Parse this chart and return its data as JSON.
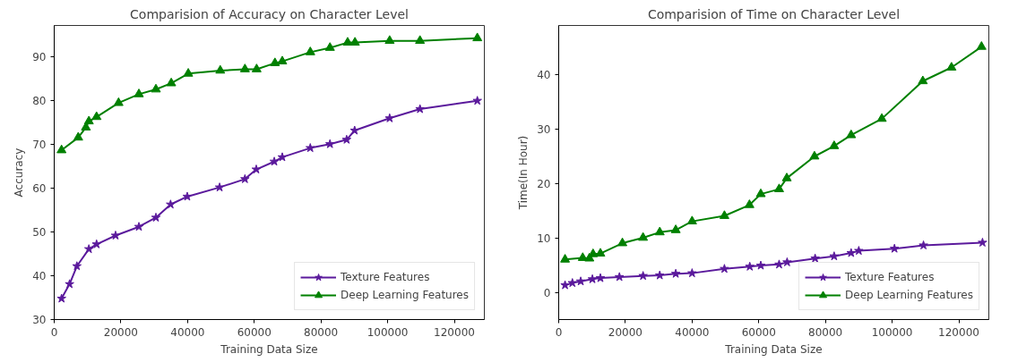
{
  "chart_data": [
    {
      "type": "line",
      "title": "Comparision of Accuracy on Character Level",
      "xlabel": "Training Data Size",
      "ylabel": "Accuracy",
      "xlim": [
        0,
        129000
      ],
      "ylim": [
        30,
        97.2
      ],
      "xticks": [
        0,
        20000,
        40000,
        60000,
        80000,
        100000,
        120000
      ],
      "yticks": [
        30,
        40,
        50,
        60,
        70,
        80,
        90
      ],
      "legend": "bottom right",
      "line_style": "solid",
      "series": [
        {
          "name": "Texture Features",
          "color": "#5b1a9c",
          "marker": "star",
          "x": [
            2200,
            4600,
            6800,
            10400,
            12700,
            18400,
            25400,
            30500,
            34900,
            39900,
            49600,
            57200,
            60600,
            66000,
            68400,
            76800,
            82700,
            87700,
            90100,
            100600,
            109700,
            126900
          ],
          "values": [
            34.8,
            38.1,
            42.2,
            46.1,
            47.2,
            49.2,
            51.2,
            53.3,
            56.3,
            58.1,
            60.2,
            62.1,
            64.3,
            66.1,
            67.1,
            69.2,
            70.1,
            71.1,
            73.2,
            76,
            78.1,
            80
          ]
        },
        {
          "name": "Deep Learning Features",
          "color": "#008000",
          "marker": "triangle",
          "x": [
            2200,
            7200,
            9500,
            10400,
            12700,
            19300,
            25400,
            30500,
            35100,
            40200,
            49800,
            57200,
            60700,
            66200,
            68400,
            76800,
            82700,
            88000,
            90200,
            100600,
            109700,
            126900
          ],
          "values": [
            68.7,
            71.6,
            73.9,
            75.3,
            76.3,
            79.5,
            81.5,
            82.6,
            84,
            86.2,
            86.9,
            87.2,
            87.2,
            88.6,
            89,
            91.1,
            92.1,
            93.3,
            93.3,
            93.7,
            93.7,
            94.3
          ]
        }
      ]
    },
    {
      "type": "line",
      "title": "Comparision of Time on Character Level",
      "xlabel": "Training Data Size",
      "ylabel": "Time(In Hour)",
      "xlim": [
        0,
        129000
      ],
      "ylim": [
        -4.9,
        49
      ],
      "xticks": [
        0,
        20000,
        40000,
        60000,
        80000,
        100000,
        120000
      ],
      "yticks": [
        0,
        10,
        20,
        30,
        40
      ],
      "legend": "bottom right",
      "line_style": "solid",
      "series": [
        {
          "name": "Texture Features",
          "color": "#5b1a9c",
          "marker": "star",
          "x": [
            1900,
            4100,
            6600,
            10100,
            12500,
            18200,
            25300,
            30300,
            35100,
            40000,
            49700,
            57300,
            60600,
            66100,
            68500,
            76900,
            82600,
            87700,
            90000,
            100700,
            109400,
            127100
          ],
          "values": [
            1.4,
            1.8,
            2.1,
            2.5,
            2.7,
            2.9,
            3.1,
            3.2,
            3.5,
            3.6,
            4.4,
            4.8,
            5,
            5.2,
            5.6,
            6.3,
            6.7,
            7.3,
            7.7,
            8.1,
            8.7,
            9.2
          ]
        },
        {
          "name": "Deep Learning Features",
          "color": "#008000",
          "marker": "triangle",
          "x": [
            1900,
            7200,
            9200,
            10300,
            12500,
            19100,
            25300,
            30300,
            35100,
            40000,
            49700,
            57200,
            60600,
            66100,
            68400,
            76700,
            82600,
            87700,
            96900,
            109200,
            117800,
            126800
          ],
          "values": [
            6.1,
            6.4,
            6.3,
            7.1,
            7.2,
            9.1,
            10.1,
            11.1,
            11.5,
            13.1,
            14.1,
            16.1,
            18.1,
            19,
            21,
            25,
            26.9,
            28.9,
            31.9,
            38.8,
            41.3,
            45.1
          ]
        }
      ]
    }
  ]
}
